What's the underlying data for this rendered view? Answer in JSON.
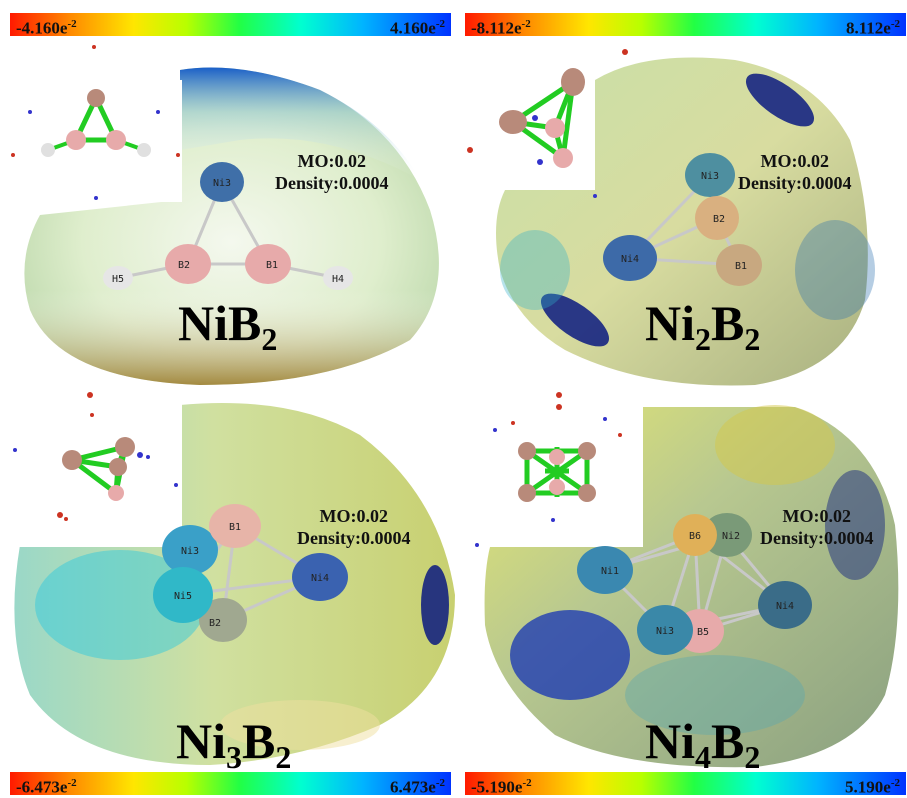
{
  "colorbars": [
    {
      "min": "-4.160e",
      "max": "4.160e",
      "exp": "-2"
    },
    {
      "min": "-8.112e",
      "max": "8.112e",
      "exp": "-2"
    },
    {
      "min": "-6.473e",
      "max": "6.473e",
      "exp": "-2"
    },
    {
      "min": "-5.190e",
      "max": "5.190e",
      "exp": "-2"
    }
  ],
  "panels": [
    {
      "mo": "MO:0.02",
      "density": "Density:0.0004",
      "formula": {
        "a": "Ni",
        "an": "",
        "b": "B",
        "bn": "2"
      },
      "atoms": [
        "Ni3",
        "B2",
        "B1",
        "H5",
        "H4"
      ]
    },
    {
      "mo": "MO:0.02",
      "density": "Density:0.0004",
      "formula": {
        "a": "Ni",
        "an": "2",
        "b": "B",
        "bn": "2"
      },
      "atoms": [
        "Ni3",
        "B2",
        "Ni4",
        "B1"
      ]
    },
    {
      "mo": "MO:0.02",
      "density": "Density:0.0004",
      "formula": {
        "a": "Ni",
        "an": "3",
        "b": "B",
        "bn": "2"
      },
      "atoms": [
        "B1",
        "Ni3",
        "Ni5",
        "Ni4",
        "B2"
      ]
    },
    {
      "mo": "MO:0.02",
      "density": "Density:0.0004",
      "formula": {
        "a": "Ni",
        "an": "4",
        "b": "B",
        "bn": "2"
      },
      "atoms": [
        "B6",
        "Ni2",
        "Ni1",
        "Ni4",
        "Ni3",
        "B5"
      ]
    }
  ],
  "colors": {
    "ni": "#4a7fb0",
    "b": "#e8a8a8",
    "h": "#e8e8e8",
    "bond_green": "#22cc22"
  }
}
